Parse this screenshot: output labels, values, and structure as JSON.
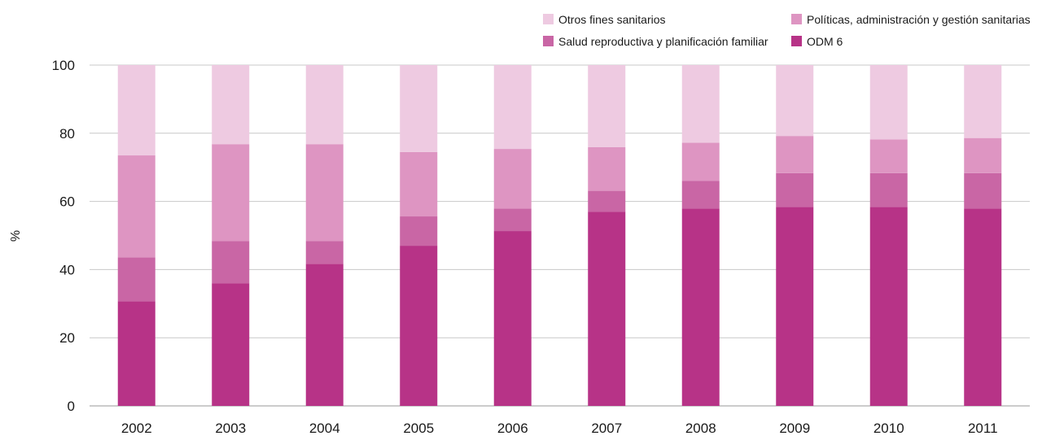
{
  "chart_data": {
    "type": "bar",
    "stacked": true,
    "categories": [
      "2002",
      "2003",
      "2004",
      "2005",
      "2006",
      "2007",
      "2008",
      "2009",
      "2010",
      "2011"
    ],
    "series": [
      {
        "name": "ODM 6",
        "color": "#b73387",
        "values": [
          30.7,
          36.0,
          41.7,
          47.0,
          51.3,
          57.0,
          57.9,
          58.4,
          58.4,
          57.9
        ]
      },
      {
        "name": "Salud reproductiva y planificación familiar",
        "color": "#c966a5",
        "values": [
          12.9,
          12.4,
          6.7,
          8.6,
          6.6,
          6.1,
          8.1,
          9.9,
          9.9,
          10.4
        ]
      },
      {
        "name": "Políticas, administración y gestión sanitarias",
        "color": "#de95c2",
        "values": [
          29.9,
          28.4,
          28.4,
          18.9,
          17.5,
          12.8,
          11.2,
          10.9,
          9.9,
          10.3
        ]
      },
      {
        "name": "Otros fines sanitarios",
        "color": "#eecae1",
        "values": [
          26.5,
          23.2,
          23.2,
          25.5,
          24.6,
          24.1,
          22.8,
          20.8,
          21.8,
          21.4
        ]
      }
    ],
    "legend_order": [
      "Otros fines sanitarios",
      "Políticas, administración y gestión sanitarias",
      "Salud reproductiva y planificación familiar",
      "ODM 6"
    ],
    "ylabel": "%",
    "xlabel": "",
    "ylim": [
      0,
      100
    ],
    "yticks": [
      "0",
      "20",
      "40",
      "60",
      "80",
      "100"
    ],
    "grid": true,
    "legend_position": "top-right"
  }
}
